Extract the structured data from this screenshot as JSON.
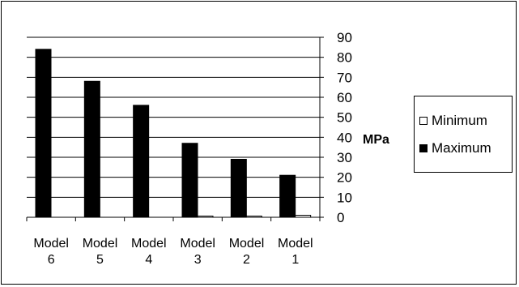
{
  "chart_data": {
    "type": "bar",
    "categories": [
      "Model\n6",
      "Model\n5",
      "Model\n4",
      "Model\n3",
      "Model\n2",
      "Model\n1"
    ],
    "series": [
      {
        "name": "Maximum",
        "color": "#000000",
        "values": [
          84,
          68,
          56,
          37,
          29,
          21
        ]
      },
      {
        "name": "Minimum",
        "color": "#ffffff",
        "values": [
          0,
          0,
          0,
          0.6,
          0.6,
          1
        ]
      }
    ],
    "ylabel": "MPa",
    "ylim": [
      0,
      90
    ],
    "yticks": [
      0,
      10,
      20,
      30,
      40,
      50,
      60,
      70,
      80,
      90
    ],
    "y_axis_side": "right",
    "grid": true,
    "legend": {
      "placement": "right",
      "order": [
        "Minimum",
        "Maximum"
      ]
    }
  }
}
